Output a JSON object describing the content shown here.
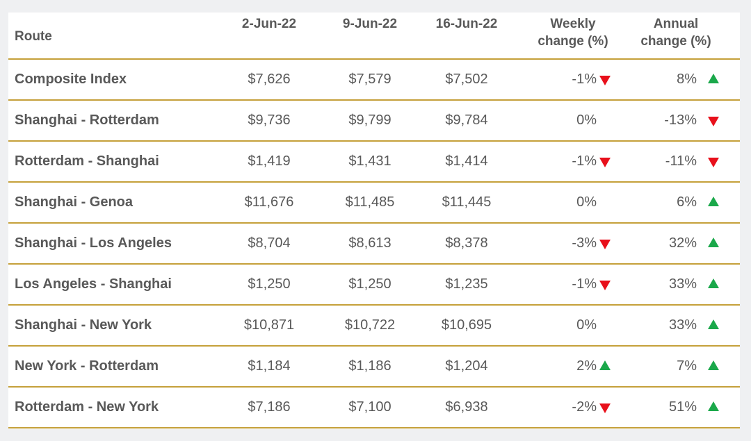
{
  "chart_data": {
    "type": "table",
    "columns": [
      "Route",
      "2-Jun-22",
      "9-Jun-22",
      "16-Jun-22",
      "Weekly change (%)",
      "Annual change (%)"
    ],
    "header": {
      "route": "Route",
      "d1": "2-Jun-22",
      "d2": "9-Jun-22",
      "d3": "16-Jun-22",
      "weekly_line1": "Weekly",
      "weekly_line2": "change (%)",
      "annual_line1": "Annual",
      "annual_line2": "change (%)"
    },
    "rows": [
      {
        "route": "Composite Index",
        "d1": "$7,626",
        "d2": "$7,579",
        "d3": "$7,502",
        "weekly": "-1%",
        "weekly_dir": "down",
        "annual": "8%",
        "annual_dir": "up"
      },
      {
        "route": "Shanghai - Rotterdam",
        "d1": "$9,736",
        "d2": "$9,799",
        "d3": "$9,784",
        "weekly": "0%",
        "weekly_dir": "none",
        "annual": "-13%",
        "annual_dir": "down"
      },
      {
        "route": "Rotterdam - Shanghai",
        "d1": "$1,419",
        "d2": "$1,431",
        "d3": "$1,414",
        "weekly": "-1%",
        "weekly_dir": "down",
        "annual": "-11%",
        "annual_dir": "down"
      },
      {
        "route": "Shanghai - Genoa",
        "d1": "$11,676",
        "d2": "$11,485",
        "d3": "$11,445",
        "weekly": "0%",
        "weekly_dir": "none",
        "annual": "6%",
        "annual_dir": "up"
      },
      {
        "route": "Shanghai - Los Angeles",
        "d1": "$8,704",
        "d2": "$8,613",
        "d3": "$8,378",
        "weekly": "-3%",
        "weekly_dir": "down",
        "annual": "32%",
        "annual_dir": "up"
      },
      {
        "route": "Los Angeles - Shanghai",
        "d1": "$1,250",
        "d2": "$1,250",
        "d3": "$1,235",
        "weekly": "-1%",
        "weekly_dir": "down",
        "annual": "33%",
        "annual_dir": "up"
      },
      {
        "route": "Shanghai - New York",
        "d1": "$10,871",
        "d2": "$10,722",
        "d3": "$10,695",
        "weekly": "0%",
        "weekly_dir": "none",
        "annual": "33%",
        "annual_dir": "up"
      },
      {
        "route": "New York - Rotterdam",
        "d1": "$1,184",
        "d2": "$1,186",
        "d3": "$1,204",
        "weekly": "2%",
        "weekly_dir": "up",
        "annual": "7%",
        "annual_dir": "up"
      },
      {
        "route": "Rotterdam - New York",
        "d1": "$7,186",
        "d2": "$7,100",
        "d3": "$6,938",
        "weekly": "-2%",
        "weekly_dir": "down",
        "annual": "51%",
        "annual_dir": "up"
      }
    ],
    "colors": {
      "up": "#1aa84a",
      "down": "#e8101b",
      "rule": "#c5a03a",
      "text": "#595959"
    }
  }
}
